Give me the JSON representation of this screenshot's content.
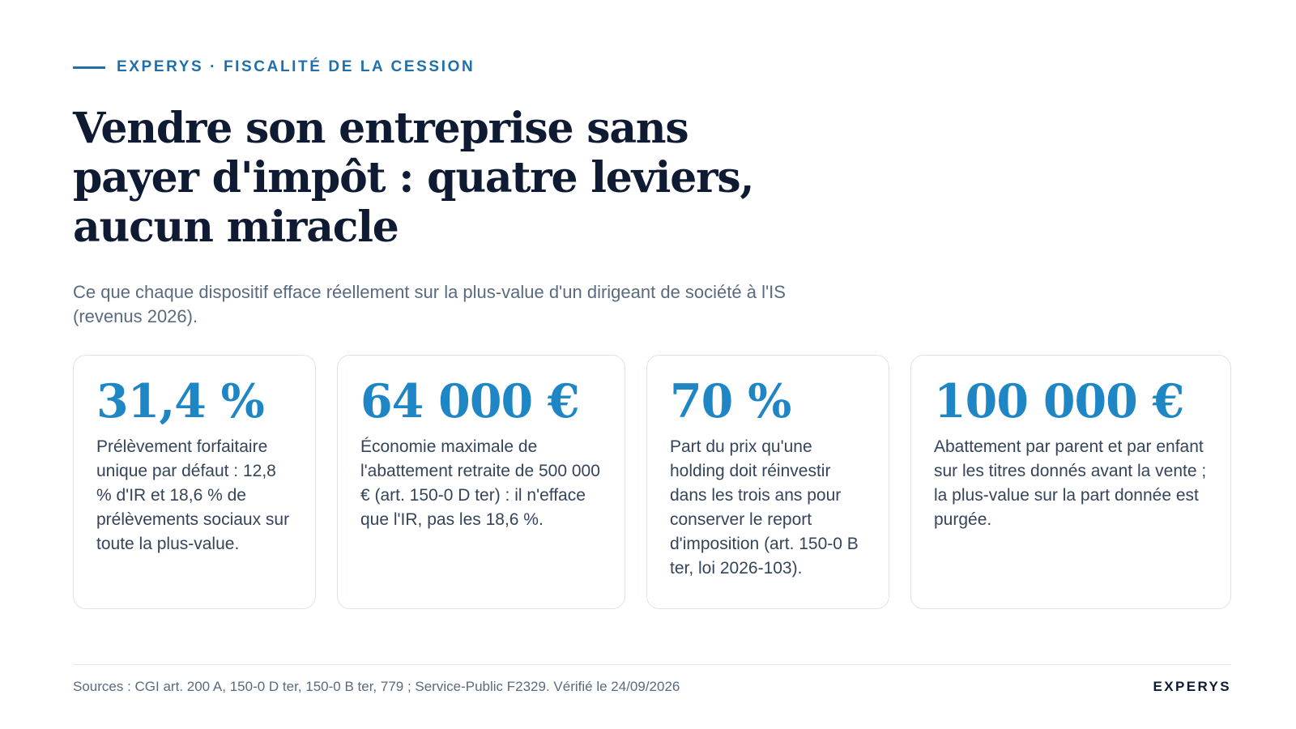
{
  "header": {
    "eyebrow": "EXPERYS · FISCALITÉ DE LA CESSION",
    "title": "Vendre son entreprise sans payer d'impôt : quatre leviers, aucun miracle",
    "subtitle": "Ce que chaque dispositif efface réellement sur la plus-value d'un dirigeant de société à l'IS (revenus 2026)."
  },
  "cards": [
    {
      "value": "31,4 %",
      "description": "Prélèvement forfaitaire unique par défaut : 12,8 % d'IR et 18,6 % de prélèvements sociaux sur toute la plus-value."
    },
    {
      "value": "64 000 €",
      "description": "Économie maximale de l'abattement retraite de 500 000 € (art. 150-0 D ter) : il n'efface que l'IR, pas les 18,6 %."
    },
    {
      "value": "70 %",
      "description": "Part du prix qu'une holding doit réinvestir dans les trois ans pour conserver le report d'imposition (art. 150-0 B ter, loi 2026-103)."
    },
    {
      "value": "100 000 €",
      "description": "Abattement par parent et par enfant sur les titres donnés avant la vente ; la plus-value sur la part donnée est purgée."
    }
  ],
  "footer": {
    "sources": "Sources : CGI art. 200 A, 150-0 D ter, 150-0 B ter, 779 ; Service-Public F2329. Vérifié le 24/09/2026",
    "brand": "EXPERYS"
  },
  "colors": {
    "accent": "#1f86c6",
    "eyebrow": "#1f6fab",
    "heading": "#0f1b33",
    "muted": "#5a6a80"
  }
}
